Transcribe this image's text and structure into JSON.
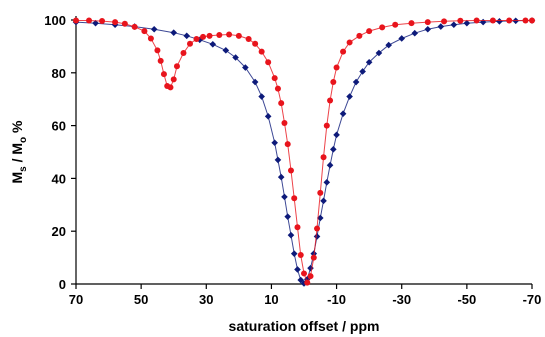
{
  "chart_data": {
    "type": "scatter",
    "xlabel": "saturation offset / ppm",
    "ylabel_parts": [
      "M",
      "s",
      " / M",
      "o",
      " %"
    ],
    "xlim": [
      70,
      -70
    ],
    "ylim": [
      0,
      100
    ],
    "x_ticks": [
      70,
      50,
      30,
      10,
      -10,
      -30,
      -50,
      -70
    ],
    "y_ticks": [
      0,
      20,
      40,
      60,
      80,
      100
    ],
    "grid": false,
    "legend": "none",
    "series": [
      {
        "color": "#0d1a7a",
        "marker": "diamond",
        "points": [
          [
            70,
            99.2
          ],
          [
            64,
            98.8
          ],
          [
            58,
            98.2
          ],
          [
            52,
            97.5
          ],
          [
            46,
            96.5
          ],
          [
            40,
            95.2
          ],
          [
            36,
            94.0
          ],
          [
            32,
            92.5
          ],
          [
            28,
            90.8
          ],
          [
            24,
            88.5
          ],
          [
            21,
            85.8
          ],
          [
            18,
            82.0
          ],
          [
            15,
            76.5
          ],
          [
            13,
            71.0
          ],
          [
            11,
            63.5
          ],
          [
            9,
            53.5
          ],
          [
            8,
            47.0
          ],
          [
            7,
            40.5
          ],
          [
            6,
            33.0
          ],
          [
            5,
            25.5
          ],
          [
            4,
            18.5
          ],
          [
            3,
            11.5
          ],
          [
            2,
            5.5
          ],
          [
            1,
            1.5
          ],
          [
            0,
            0.2
          ],
          [
            -1,
            1.8
          ],
          [
            -2,
            6.0
          ],
          [
            -3,
            11.5
          ],
          [
            -4,
            18.0
          ],
          [
            -5,
            25.0
          ],
          [
            -6,
            31.5
          ],
          [
            -7,
            38.5
          ],
          [
            -8,
            45.0
          ],
          [
            -9,
            51.0
          ],
          [
            -10,
            56.5
          ],
          [
            -12,
            64.5
          ],
          [
            -14,
            71.0
          ],
          [
            -16,
            76.5
          ],
          [
            -18,
            80.5
          ],
          [
            -20,
            84.0
          ],
          [
            -23,
            87.5
          ],
          [
            -26,
            90.5
          ],
          [
            -30,
            93.0
          ],
          [
            -34,
            95.0
          ],
          [
            -38,
            96.5
          ],
          [
            -42,
            97.5
          ],
          [
            -46,
            98.2
          ],
          [
            -50,
            98.8
          ],
          [
            -55,
            99.2
          ],
          [
            -60,
            99.5
          ],
          [
            -65,
            99.7
          ],
          [
            -70,
            99.8
          ]
        ]
      },
      {
        "color": "#e8141c",
        "marker": "circle",
        "points": [
          [
            70,
            99.8
          ],
          [
            66,
            99.8
          ],
          [
            62,
            99.6
          ],
          [
            58,
            99.2
          ],
          [
            55,
            98.6
          ],
          [
            52,
            97.4
          ],
          [
            49,
            95.8
          ],
          [
            47,
            93.0
          ],
          [
            45,
            88.5
          ],
          [
            44,
            84.5
          ],
          [
            43,
            79.5
          ],
          [
            42,
            75.0
          ],
          [
            41,
            74.5
          ],
          [
            40,
            77.5
          ],
          [
            39,
            82.5
          ],
          [
            37,
            87.5
          ],
          [
            35,
            91.0
          ],
          [
            33,
            92.8
          ],
          [
            31,
            93.6
          ],
          [
            29,
            94.0
          ],
          [
            26,
            94.3
          ],
          [
            23,
            94.5
          ],
          [
            20,
            94.0
          ],
          [
            17,
            92.8
          ],
          [
            15,
            91.0
          ],
          [
            13,
            88.0
          ],
          [
            11,
            84.0
          ],
          [
            9,
            78.0
          ],
          [
            8,
            74.0
          ],
          [
            7,
            68.5
          ],
          [
            6,
            61.0
          ],
          [
            5,
            53.0
          ],
          [
            4,
            43.0
          ],
          [
            3,
            32.5
          ],
          [
            2,
            21.5
          ],
          [
            1,
            11.0
          ],
          [
            0,
            4.0
          ],
          [
            -1,
            0.5
          ],
          [
            -2,
            3.0
          ],
          [
            -3,
            10.0
          ],
          [
            -4,
            21.0
          ],
          [
            -5,
            34.5
          ],
          [
            -6,
            48.0
          ],
          [
            -7,
            60.0
          ],
          [
            -8,
            69.5
          ],
          [
            -9,
            76.5
          ],
          [
            -10,
            82.0
          ],
          [
            -12,
            88.0
          ],
          [
            -14,
            91.5
          ],
          [
            -17,
            94.0
          ],
          [
            -20,
            95.8
          ],
          [
            -24,
            97.2
          ],
          [
            -28,
            98.2
          ],
          [
            -33,
            98.8
          ],
          [
            -38,
            99.2
          ],
          [
            -43,
            99.5
          ],
          [
            -48,
            99.7
          ],
          [
            -53,
            99.8
          ],
          [
            -58,
            99.8
          ],
          [
            -63,
            99.8
          ],
          [
            -68,
            99.8
          ],
          [
            -70,
            99.8
          ]
        ]
      }
    ]
  }
}
